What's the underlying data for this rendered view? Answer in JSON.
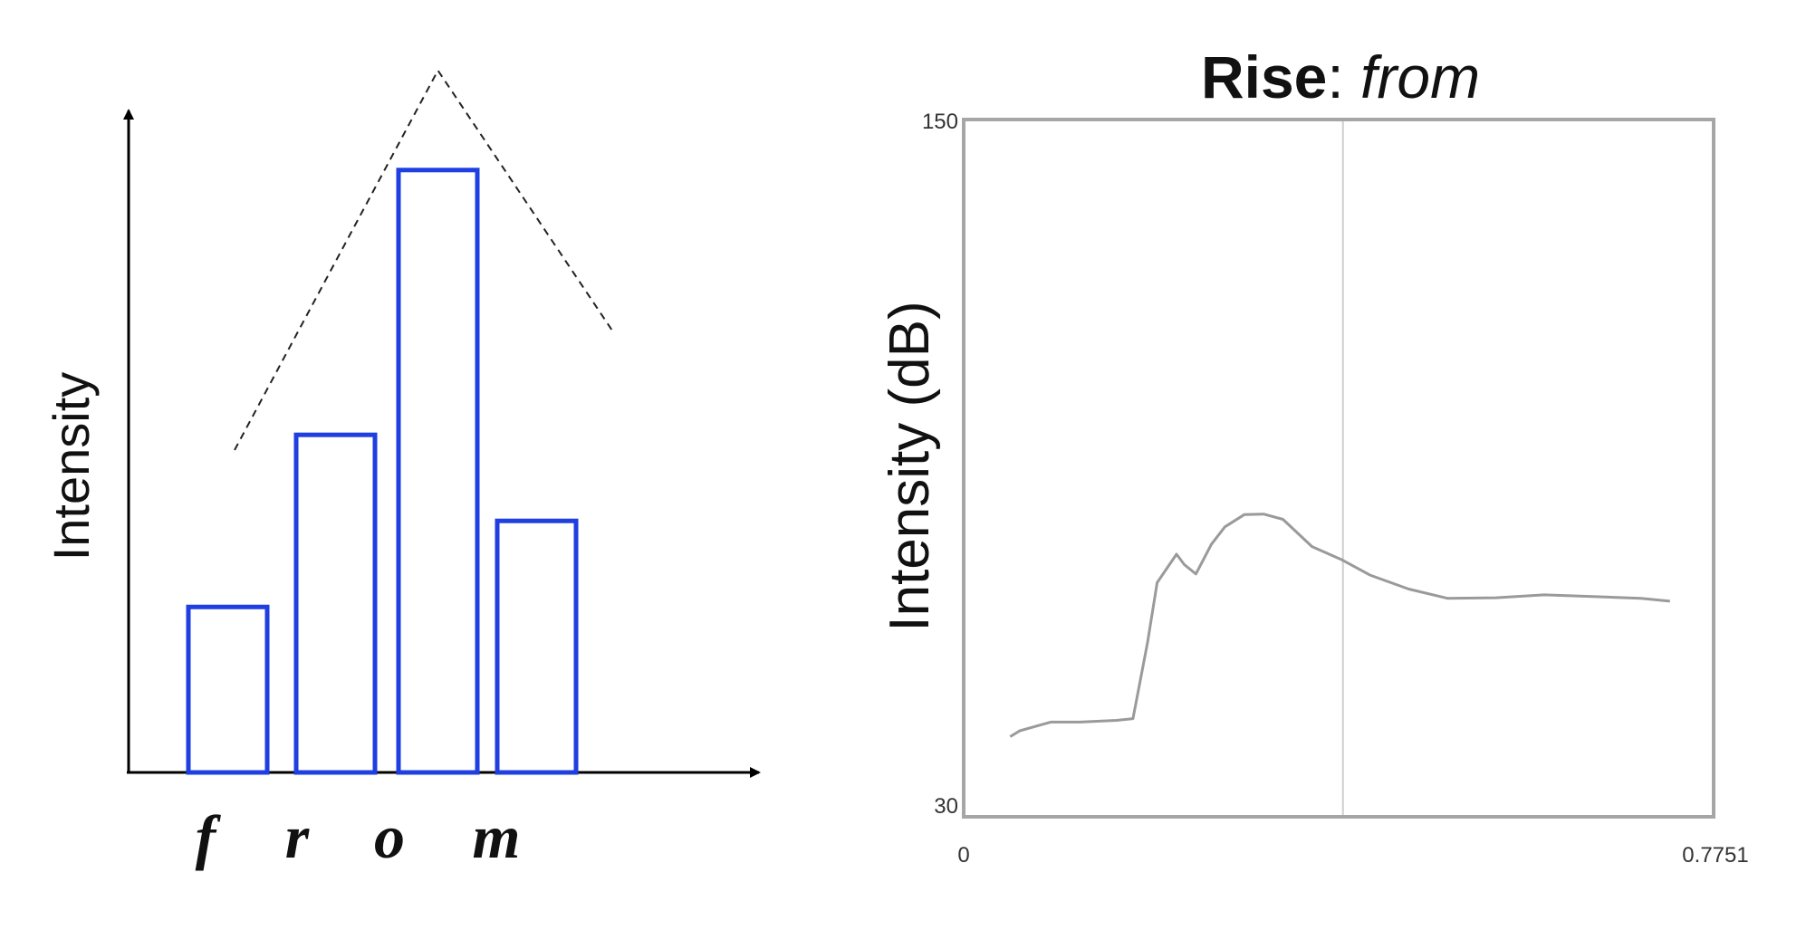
{
  "chart_data": [
    {
      "type": "bar",
      "ylabel": "Intensity",
      "categories": [
        "f",
        "r",
        "o",
        "m"
      ],
      "values": [
        25,
        51,
        91,
        38
      ],
      "bar_color": "#1f3fe0",
      "trend_line": {
        "style": "dashed",
        "shape": "peak",
        "color": "#222222"
      }
    },
    {
      "type": "line",
      "title_bold": "Rise",
      "title_sep": ":",
      "title_italic": "from",
      "ylabel": "Intensity (dB)",
      "xlim": [
        0,
        0.7751
      ],
      "ylim": [
        30,
        150
      ],
      "xticks": [
        "0",
        "0.7751"
      ],
      "yticks": [
        "30",
        "150"
      ],
      "cursor_x": 0.392,
      "line_color": "#9a9a9a",
      "frame_color": "#a6a6a6",
      "series": [
        {
          "x": [
            0.048,
            0.058,
            0.09,
            0.12,
            0.158,
            0.175,
            0.19,
            0.2,
            0.22,
            0.228,
            0.24,
            0.256,
            0.27,
            0.29,
            0.31,
            0.33,
            0.36,
            0.39,
            0.42,
            0.46,
            0.5,
            0.55,
            0.6,
            0.65,
            0.7,
            0.73
          ],
          "y": [
            43.8,
            44.8,
            46.3,
            46.3,
            46.6,
            46.9,
            60,
            70.3,
            75.2,
            73.4,
            71.8,
            76.9,
            79.9,
            82,
            82.1,
            81.2,
            76.5,
            74.3,
            71.6,
            69.2,
            67.6,
            67.7,
            68.2,
            67.9,
            67.6,
            67.1
          ]
        }
      ]
    }
  ]
}
